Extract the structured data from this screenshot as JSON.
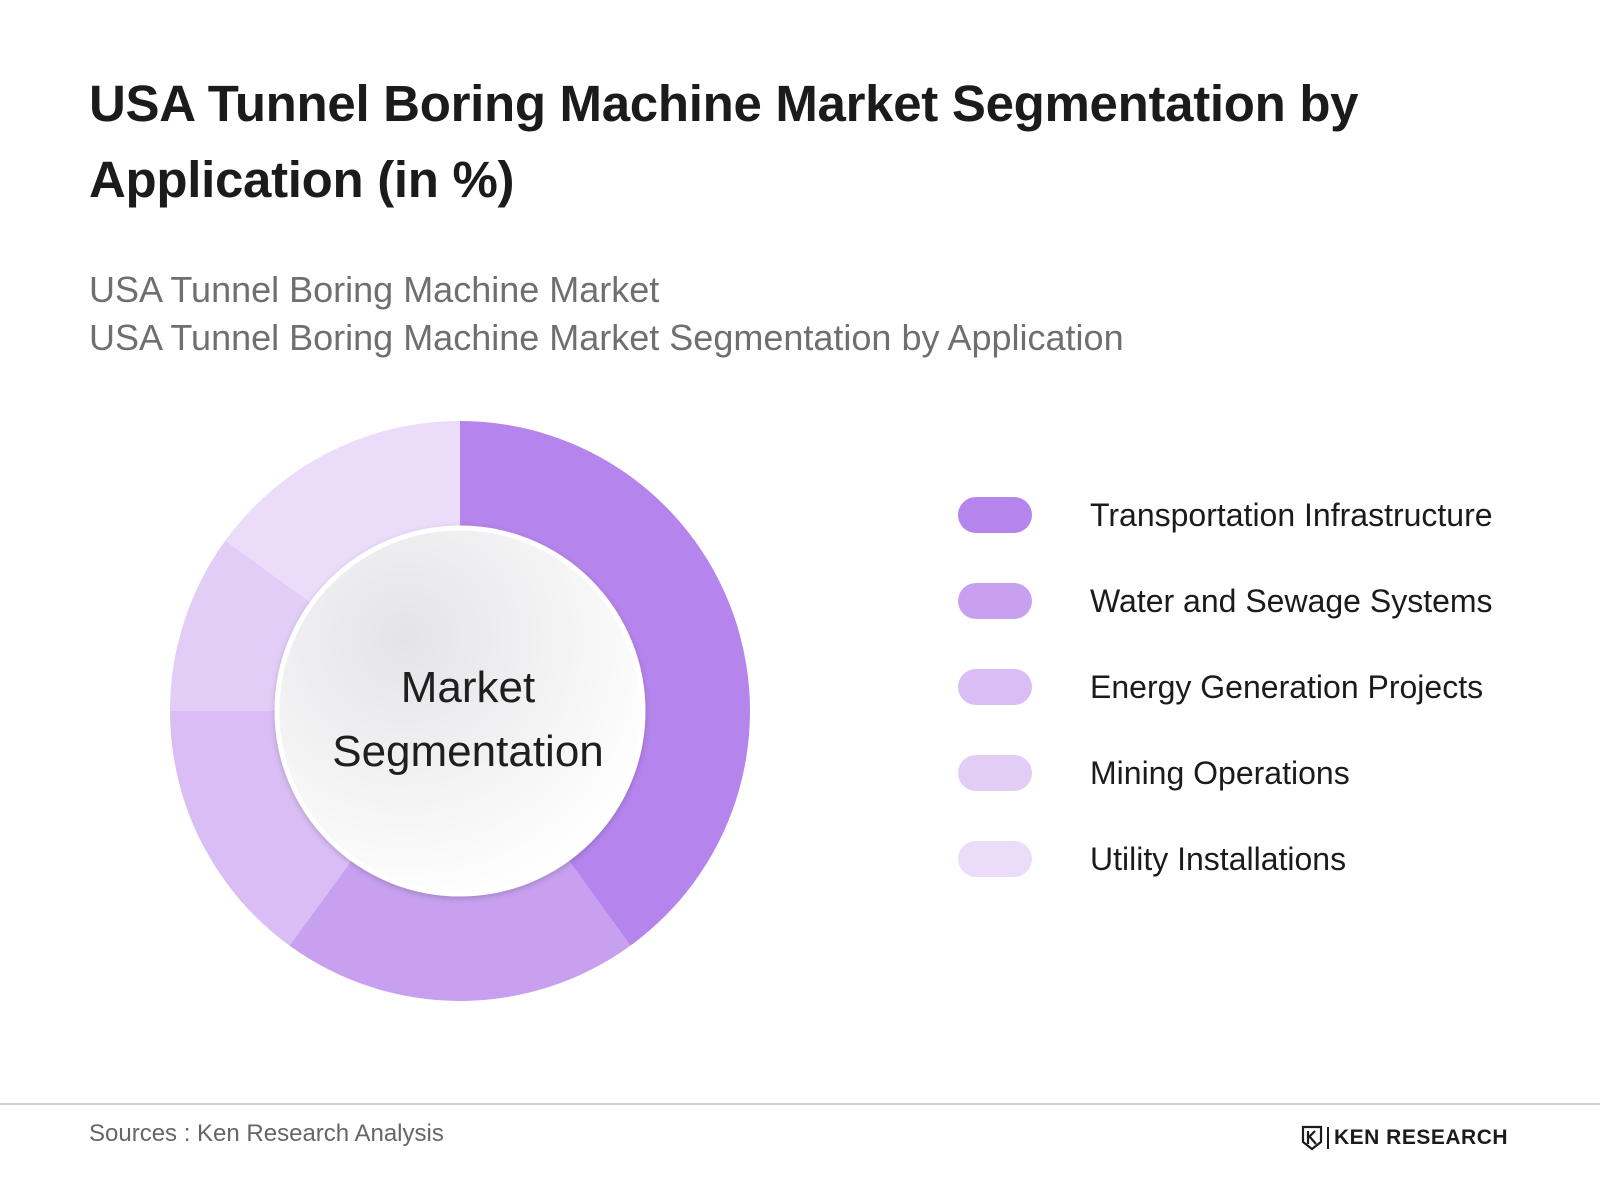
{
  "title": "USA Tunnel Boring Machine Market Segmentation by Application (in %)",
  "subtitle_lines": [
    "USA Tunnel Boring Machine Market",
    "USA Tunnel Boring Machine Market Segmentation by Application"
  ],
  "chart_data": {
    "type": "pie",
    "style": "donut",
    "center_label": [
      "Market",
      "Segmentation"
    ],
    "categories": [
      "Transportation Infrastructure",
      "Water and Sewage Systems",
      "Energy Generation Projects",
      "Mining Operations",
      "Utility Installations"
    ],
    "values": [
      40,
      20,
      15,
      10,
      15
    ],
    "colors": [
      "#b584ec",
      "#c7a0ef",
      "#d9bdf4",
      "#e2cdf7",
      "#ebdcfa"
    ],
    "legend_position": "right",
    "start_angle": "top, clockwise"
  },
  "footer": {
    "source": "Sources : Ken Research Analysis",
    "brand": "KEN RESEARCH"
  }
}
